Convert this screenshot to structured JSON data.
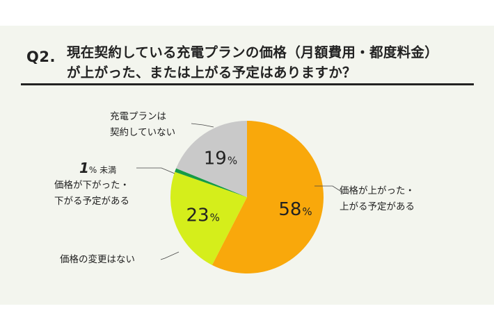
{
  "question": {
    "number": "Q2.",
    "line1": "現在契約している充電プランの価格（月額費用・都度料金）",
    "line2": "が上がった、または上がる予定はありますか？"
  },
  "chart_data": {
    "type": "pie",
    "title": "現在契約している充電プランの価格（月額費用・都度料金）が上がった、または上がる予定はありますか？",
    "slices": [
      {
        "label_lines": [
          "価格が上がった・",
          "上がる予定がある"
        ],
        "value": 58,
        "display_value": "58",
        "unit": "%",
        "color": "#f9a80b"
      },
      {
        "label_lines": [
          "価格の変更はない"
        ],
        "value": 23,
        "display_value": "23",
        "unit": "%",
        "color": "#d5ee1b"
      },
      {
        "label_lines": [
          "価格が下がった・",
          "下がる予定がある"
        ],
        "value": 0.8,
        "display_value": "1",
        "unit": "% 未満",
        "color": "#169b45"
      },
      {
        "label_lines": [
          "充電プランは",
          "契約していない"
        ],
        "value": 19,
        "display_value": "19",
        "unit": "%",
        "color": "#c9c9c9"
      }
    ]
  }
}
